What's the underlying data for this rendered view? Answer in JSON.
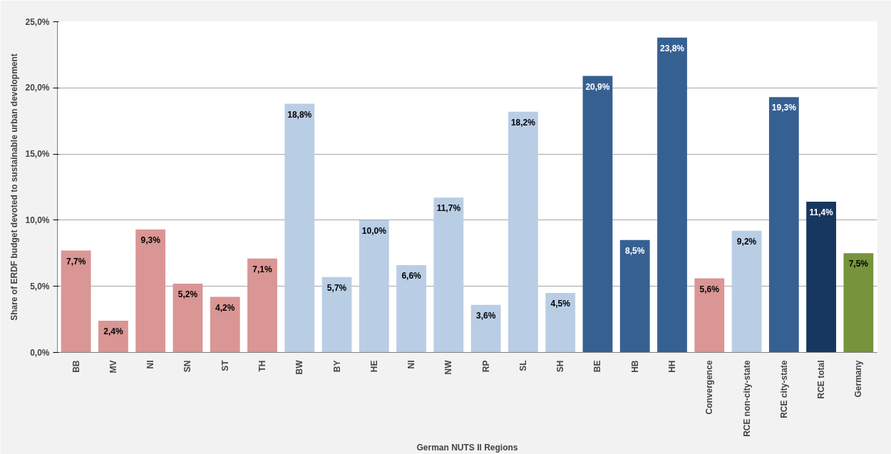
{
  "chart_data": {
    "type": "bar",
    "xlabel": "German NUTS II Regions",
    "ylabel": "Share of ERDF budget devoted to sustainable urban development",
    "categories": [
      "BB",
      "MV",
      "NI",
      "SN",
      "ST",
      "TH",
      "BW",
      "BY",
      "HE",
      "NI",
      "NW",
      "RP",
      "SL",
      "SH",
      "BE",
      "HB",
      "HH",
      "Convergence",
      "RCE non-city-state",
      "RCE city-state",
      "RCE total",
      "Germany"
    ],
    "values": [
      7.7,
      2.4,
      9.3,
      5.2,
      4.2,
      7.1,
      18.8,
      5.7,
      10.0,
      6.6,
      11.7,
      3.6,
      18.2,
      4.5,
      20.9,
      8.5,
      23.8,
      5.6,
      9.2,
      19.3,
      11.4,
      7.5
    ],
    "value_labels": [
      "7,7%",
      "2,4%",
      "9,3%",
      "5,2%",
      "4,2%",
      "7,1%",
      "18,8%",
      "5,7%",
      "10,0%",
      "6,6%",
      "11,7%",
      "3,6%",
      "18,2%",
      "4,5%",
      "20,9%",
      "8,5%",
      "23,8%",
      "5,6%",
      "9,2%",
      "19,3%",
      "11,4%",
      "7,5%"
    ],
    "colors": [
      "#d99694",
      "#d99694",
      "#d99694",
      "#d99694",
      "#d99694",
      "#d99694",
      "#b9cde5",
      "#b9cde5",
      "#b9cde5",
      "#b9cde5",
      "#b9cde5",
      "#b9cde5",
      "#b9cde5",
      "#b9cde5",
      "#376092",
      "#376092",
      "#376092",
      "#d99694",
      "#b9cde5",
      "#376092",
      "#17375e",
      "#77933c"
    ],
    "ylim": [
      0,
      25
    ],
    "yticks": [
      {
        "value": 0,
        "label": "0,0%"
      },
      {
        "value": 5,
        "label": "5,0%"
      },
      {
        "value": 10,
        "label": "10,0%"
      },
      {
        "value": 15,
        "label": "15,0%"
      },
      {
        "value": 20,
        "label": "20,0%"
      },
      {
        "value": 25,
        "label": "25,0%"
      }
    ],
    "grid": "y"
  }
}
